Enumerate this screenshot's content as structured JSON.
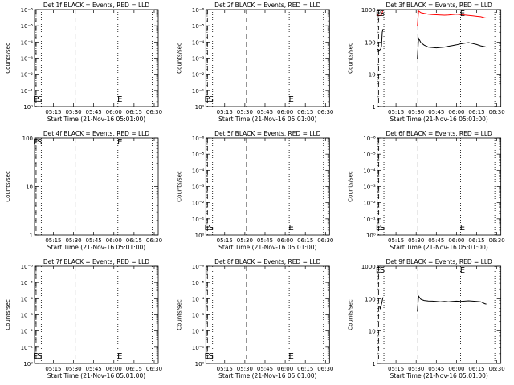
{
  "chart_data": [
    {
      "type": "line",
      "title": "Det 1f BLACK = Events, RED = LLD",
      "xlabel": "Start Time (21-Nov-16 05:01:00)",
      "ylabel": "Counts/sec",
      "x_ticks": [
        "05:15",
        "05:30",
        "05:45",
        "06:00",
        "06:15",
        "06:30"
      ],
      "y_scale": "log",
      "y_ticks": [
        "10⁰",
        "10⁻¹",
        "10⁻²",
        "10⁻³",
        "10⁻⁴",
        "10⁻⁵",
        "10⁻⁶"
      ],
      "annotations": [
        "E",
        "S",
        "E"
      ],
      "series": []
    },
    {
      "type": "line",
      "title": "Det 2f BLACK = Events, RED = LLD",
      "xlabel": "Start Time (21-Nov-16 05:01:00)",
      "ylabel": "Counts/sec",
      "x_ticks": [
        "05:15",
        "05:30",
        "05:45",
        "06:00",
        "06:15",
        "06:30"
      ],
      "y_scale": "log",
      "y_ticks": [
        "10⁰",
        "10⁻¹",
        "10⁻²",
        "10⁻³",
        "10⁻⁴",
        "10⁻⁵",
        "10⁻⁶"
      ],
      "annotations": [
        "E",
        "S",
        "E"
      ],
      "series": []
    },
    {
      "type": "line",
      "title": "Det 3f BLACK = Events, RED = LLD",
      "xlabel": "Start Time (21-Nov-16 05:01:00)",
      "ylabel": "Counts/sec",
      "x_ticks": [
        "05:15",
        "05:30",
        "05:45",
        "06:00",
        "06:15",
        "06:30"
      ],
      "y_scale": "log",
      "y_ticks": [
        "1",
        "10",
        "100",
        "1000"
      ],
      "annotations": [
        "E",
        "S",
        "E"
      ],
      "series": [
        {
          "color": "#ff0000",
          "segments": [
            [
              [
                5.0167,
                700
              ],
              [
                5.03,
                650
              ],
              [
                5.06,
                650
              ],
              [
                5.075,
                720
              ],
              [
                5.085,
                900
              ]
            ],
            [
              [
                5.515,
                300
              ],
              [
                5.53,
                900
              ],
              [
                5.56,
                800
              ],
              [
                5.6,
                760
              ],
              [
                5.65,
                720
              ],
              [
                5.7,
                700
              ],
              [
                5.75,
                690
              ],
              [
                5.8,
                680
              ],
              [
                5.85,
                670
              ],
              [
                5.9,
                680
              ],
              [
                5.95,
                700
              ],
              [
                6.0,
                720
              ],
              [
                6.05,
                700
              ],
              [
                6.1,
                680
              ],
              [
                6.15,
                660
              ],
              [
                6.2,
                640
              ],
              [
                6.25,
                620
              ],
              [
                6.3,
                600
              ],
              [
                6.35,
                560
              ],
              [
                6.37,
                550
              ]
            ]
          ]
        },
        {
          "color": "#000000",
          "segments": [
            [
              [
                5.0167,
                60
              ],
              [
                5.04,
                55
              ],
              [
                5.06,
                60
              ],
              [
                5.07,
                75
              ],
              [
                5.08,
                200
              ],
              [
                5.09,
                250
              ]
            ],
            [
              [
                5.515,
                30
              ],
              [
                5.53,
                130
              ],
              [
                5.56,
                95
              ],
              [
                5.6,
                80
              ],
              [
                5.65,
                70
              ],
              [
                5.7,
                68
              ],
              [
                5.75,
                66
              ],
              [
                5.8,
                68
              ],
              [
                5.85,
                70
              ],
              [
                5.9,
                74
              ],
              [
                5.95,
                78
              ],
              [
                6.0,
                82
              ],
              [
                6.05,
                88
              ],
              [
                6.1,
                92
              ],
              [
                6.15,
                96
              ],
              [
                6.2,
                90
              ],
              [
                6.25,
                84
              ],
              [
                6.3,
                76
              ],
              [
                6.35,
                72
              ],
              [
                6.37,
                70
              ]
            ]
          ]
        }
      ]
    },
    {
      "type": "line",
      "title": "Det 4f BLACK = Events, RED = LLD",
      "xlabel": "Start Time (21-Nov-16 05:01:00)",
      "ylabel": "Counts/sec",
      "x_ticks": [
        "05:15",
        "05:30",
        "05:45",
        "06:00",
        "06:15",
        "06:30"
      ],
      "y_scale": "log",
      "y_ticks": [
        "1",
        "10",
        "100"
      ],
      "annotations": [
        "E",
        "S",
        "E"
      ],
      "series": []
    },
    {
      "type": "line",
      "title": "Det 5f BLACK = Events, RED = LLD",
      "xlabel": "Start Time (21-Nov-16 05:01:00)",
      "ylabel": "Counts/sec",
      "x_ticks": [
        "05:15",
        "05:30",
        "05:45",
        "06:00",
        "06:15",
        "06:30"
      ],
      "y_scale": "log",
      "y_ticks": [
        "10⁰",
        "10⁻¹",
        "10⁻²",
        "10⁻³",
        "10⁻⁴",
        "10⁻⁵",
        "10⁻⁶"
      ],
      "annotations": [
        "E",
        "S",
        "E"
      ],
      "series": []
    },
    {
      "type": "line",
      "title": "Det 6f BLACK = Events, RED = LLD",
      "xlabel": "Start Time (21-Nov-16 05:01:00)",
      "ylabel": "Counts/sec",
      "x_ticks": [
        "05:15",
        "05:30",
        "05:45",
        "06:00",
        "06:15",
        "06:30"
      ],
      "y_scale": "log",
      "y_ticks": [
        "10⁰",
        "10⁻¹",
        "10⁻²",
        "10⁻³",
        "10⁻⁴",
        "10⁻⁵",
        "10⁻⁶"
      ],
      "annotations": [
        "E",
        "S",
        "E"
      ],
      "series": []
    },
    {
      "type": "line",
      "title": "Det 7f BLACK = Events, RED = LLD",
      "xlabel": "Start Time (21-Nov-16 05:01:00)",
      "ylabel": "Counts/sec",
      "x_ticks": [
        "05:15",
        "05:30",
        "05:45",
        "06:00",
        "06:15",
        "06:30"
      ],
      "y_scale": "log",
      "y_ticks": [
        "10⁰",
        "10⁻¹",
        "10⁻²",
        "10⁻³",
        "10⁻⁴",
        "10⁻⁵",
        "10⁻⁶"
      ],
      "annotations": [
        "E",
        "S",
        "E"
      ],
      "series": []
    },
    {
      "type": "line",
      "title": "Det 8f BLACK = Events, RED = LLD",
      "xlabel": "Start Time (21-Nov-16 05:01:00)",
      "ylabel": "Counts/sec",
      "x_ticks": [
        "05:15",
        "05:30",
        "05:45",
        "06:00",
        "06:15",
        "06:30"
      ],
      "y_scale": "log",
      "y_ticks": [
        "10⁰",
        "10⁻¹",
        "10⁻²",
        "10⁻³",
        "10⁻⁴",
        "10⁻⁵",
        "10⁻⁶"
      ],
      "annotations": [
        "E",
        "S",
        "E"
      ],
      "series": []
    },
    {
      "type": "line",
      "title": "Det 9f BLACK = Events, RED = LLD",
      "xlabel": "Start Time (21-Nov-16 05:01:00)",
      "ylabel": "Counts/sec",
      "x_ticks": [
        "05:15",
        "05:30",
        "05:45",
        "06:00",
        "06:15",
        "06:30"
      ],
      "y_scale": "log",
      "y_ticks": [
        "1",
        "10",
        "100",
        "1000"
      ],
      "annotations": [
        "E",
        "S",
        "E"
      ],
      "series": [
        {
          "color": "#000000",
          "segments": [
            [
              [
                5.045,
                60
              ],
              [
                5.055,
                50
              ],
              [
                5.065,
                60
              ],
              [
                5.075,
                75
              ],
              [
                5.085,
                100
              ],
              [
                5.09,
                110
              ]
            ],
            [
              [
                5.515,
                40
              ],
              [
                5.53,
                120
              ],
              [
                5.56,
                95
              ],
              [
                5.6,
                88
              ],
              [
                5.65,
                85
              ],
              [
                5.7,
                84
              ],
              [
                5.75,
                82
              ],
              [
                5.8,
                80
              ],
              [
                5.85,
                82
              ],
              [
                5.9,
                80
              ],
              [
                5.95,
                82
              ],
              [
                6.0,
                84
              ],
              [
                6.05,
                82
              ],
              [
                6.1,
                84
              ],
              [
                6.15,
                86
              ],
              [
                6.2,
                84
              ],
              [
                6.25,
                82
              ],
              [
                6.3,
                80
              ],
              [
                6.35,
                70
              ],
              [
                6.37,
                68
              ]
            ]
          ]
        }
      ]
    }
  ]
}
